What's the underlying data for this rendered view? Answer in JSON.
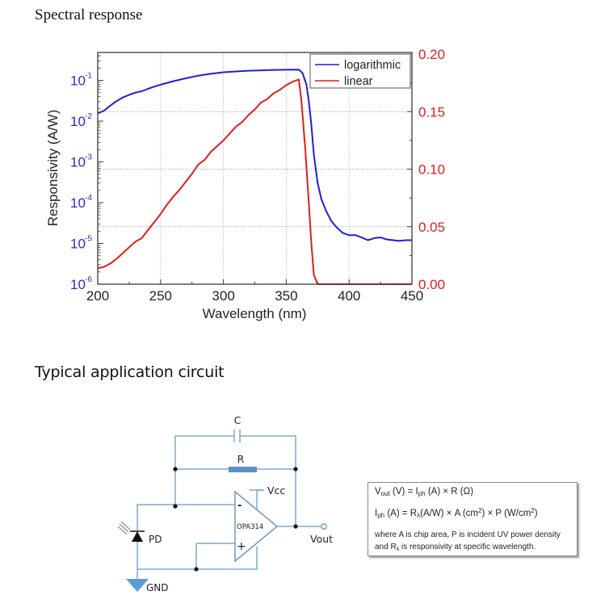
{
  "page": {
    "section1_title": "Spectral response",
    "section2_title": "Typical application circuit"
  },
  "colors": {
    "logarithmic": "#1f1fd0",
    "linear": "#e01e1e",
    "left_axis_labels": "#2a2ad0",
    "right_axis_labels": "#e01e1e",
    "circuit_wire": "#7fa8cf",
    "resistor": "#5b8fc9",
    "ground": "#5b9bd5"
  },
  "chart_data": {
    "type": "line",
    "title": "Spectral response",
    "xlabel": "Wavelength (nm)",
    "ylabel": "Responsivity (A/W)",
    "xlim": [
      200,
      450
    ],
    "x_ticks": [
      200,
      250,
      300,
      350,
      400,
      450
    ],
    "y_left": {
      "scale": "log",
      "lim": [
        1e-06,
        0.5
      ],
      "tick_labels": [
        {
          "base": "10",
          "exp": "-1",
          "value": 0.1
        },
        {
          "base": "10",
          "exp": "-2",
          "value": 0.01
        },
        {
          "base": "10",
          "exp": "-3",
          "value": 0.001
        },
        {
          "base": "10",
          "exp": "-4",
          "value": 0.0001
        },
        {
          "base": "10",
          "exp": "-5",
          "value": 1e-05
        },
        {
          "base": "10",
          "exp": "-6",
          "value": 1e-06
        }
      ]
    },
    "y_right": {
      "scale": "linear",
      "lim": [
        0,
        0.2
      ],
      "tick_labels": [
        "0.00",
        "0.05",
        "0.10",
        "0.15",
        "0.20"
      ],
      "tick_values": [
        0,
        0.05,
        0.1,
        0.15,
        0.2
      ]
    },
    "grid": true,
    "legend": {
      "position": "top-right",
      "entries": [
        "logarithmic",
        "linear"
      ]
    },
    "series": [
      {
        "name": "logarithmic",
        "axis": "left",
        "x": [
          200,
          205,
          210,
          215,
          220,
          225,
          230,
          235,
          240,
          245,
          250,
          260,
          270,
          280,
          290,
          300,
          310,
          320,
          330,
          340,
          350,
          360,
          363,
          366,
          368,
          370,
          372,
          375,
          378,
          382,
          386,
          390,
          395,
          400,
          405,
          410,
          415,
          420,
          425,
          430,
          435,
          440,
          445,
          450
        ],
        "y": [
          0.0155,
          0.018,
          0.024,
          0.031,
          0.038,
          0.044,
          0.05,
          0.054,
          0.062,
          0.07,
          0.078,
          0.095,
          0.112,
          0.13,
          0.145,
          0.158,
          0.165,
          0.172,
          0.176,
          0.18,
          0.182,
          0.183,
          0.15,
          0.08,
          0.03,
          0.008,
          0.0015,
          0.0003,
          0.00012,
          6e-05,
          3.5e-05,
          2.5e-05,
          1.8e-05,
          1.6e-05,
          1.6e-05,
          1.4e-05,
          1.2e-05,
          1.35e-05,
          1.4e-05,
          1.25e-05,
          1.2e-05,
          1.15e-05,
          1.2e-05,
          1.2e-05
        ]
      },
      {
        "name": "linear",
        "axis": "right",
        "x": [
          200,
          205,
          210,
          215,
          220,
          225,
          230,
          235,
          240,
          245,
          250,
          255,
          260,
          265,
          270,
          275,
          280,
          285,
          290,
          295,
          300,
          305,
          310,
          315,
          320,
          325,
          330,
          335,
          340,
          345,
          350,
          355,
          360,
          362,
          365,
          368,
          370,
          372,
          375,
          400,
          425,
          450
        ],
        "y": [
          0.014,
          0.015,
          0.018,
          0.022,
          0.027,
          0.032,
          0.037,
          0.04,
          0.047,
          0.054,
          0.061,
          0.069,
          0.076,
          0.082,
          0.089,
          0.096,
          0.104,
          0.108,
          0.115,
          0.12,
          0.125,
          0.131,
          0.137,
          0.141,
          0.147,
          0.152,
          0.158,
          0.161,
          0.166,
          0.169,
          0.173,
          0.176,
          0.178,
          0.16,
          0.12,
          0.07,
          0.035,
          0.008,
          0.0,
          0.0,
          0.0,
          0.0
        ]
      }
    ]
  },
  "circuit": {
    "capacitor_label": "C",
    "resistor_label": "R",
    "opamp_label": "OPA314",
    "inverting_label": "-",
    "noninverting_label": "+",
    "supply_label": "Vcc",
    "output_label": "Vout",
    "photodiode_label": "PD",
    "ground_label": "GND"
  },
  "formula_box": {
    "line1_prefix": "V",
    "line1_sub": "out",
    "line1_rest_a": " (V) = I",
    "line1_sub2": "ph",
    "line1_rest_b": " (A) × R (Ω)",
    "line2_prefix": "I",
    "line2_sub": "ph",
    "line2_rest_a": " (A) = R",
    "line2_sub2": "λ",
    "line2_rest_b": "(A/W) × A (cm",
    "line2_sup1": "2",
    "line2_rest_c": ") × P (W/cm",
    "line2_sup2": "2",
    "line2_rest_d": ")",
    "note_line1": "where A is chip area, P is incident UV power density",
    "note_line2_a": "and R",
    "note_line2_sub": "λ",
    "note_line2_b": " is responsivity at specific wavelength."
  }
}
